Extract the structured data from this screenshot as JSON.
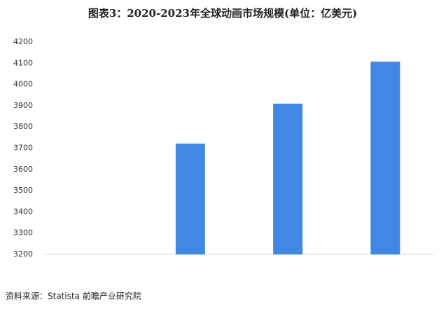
{
  "chart_data": {
    "type": "bar",
    "title": "图表3：2020-2023年全球动画市场规模(单位：亿美元)",
    "categories": [
      null,
      null,
      null,
      null
    ],
    "values": [
      null,
      3722,
      3910,
      4108
    ],
    "color": "#4187e4",
    "ylim": [
      3200,
      4200
    ],
    "yticks": [
      3200,
      3300,
      3400,
      3500,
      3600,
      3700,
      3800,
      3900,
      4000,
      4100,
      4200
    ],
    "grid": false,
    "source": "资料来源：Statista 前瞻产业研究院"
  }
}
